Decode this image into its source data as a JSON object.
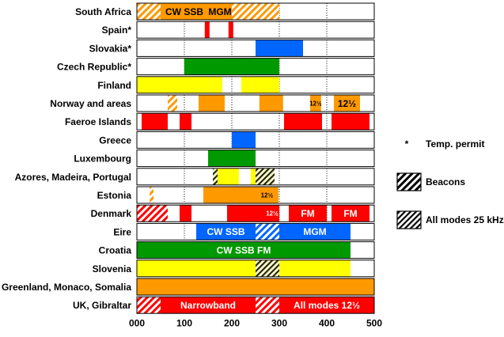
{
  "chart_data": {
    "type": "bar",
    "orientation": "horizontal",
    "subtype": "band-allocation",
    "x_ticks": [
      "000",
      "100",
      "200",
      "300",
      "400",
      "500"
    ],
    "x_tick_values": [
      0,
      100,
      200,
      300,
      400,
      500
    ],
    "xlim": [
      0,
      500
    ],
    "gridlines": [
      100,
      200,
      300,
      400
    ],
    "colors": {
      "orange": "#ff9900",
      "red": "#ff0000",
      "blue": "#0066ff",
      "green": "#009900",
      "yellow": "#ffff00",
      "white": "#ffffff"
    },
    "rows": [
      {
        "label": "South Africa",
        "segments": [
          {
            "from": 0,
            "to": 50,
            "fill": "orange",
            "pattern": "hatch"
          },
          {
            "from": 50,
            "to": 150,
            "fill": "orange",
            "text": "CW SSB"
          },
          {
            "from": 150,
            "to": 200,
            "fill": "orange",
            "text": "MGM"
          },
          {
            "from": 200,
            "to": 300,
            "fill": "orange",
            "pattern": "hatch"
          }
        ]
      },
      {
        "label": "Spain*",
        "segments": [
          {
            "from": 143,
            "to": 153,
            "fill": "red"
          },
          {
            "from": 193,
            "to": 203,
            "fill": "red"
          }
        ]
      },
      {
        "label": "Slovakia*",
        "segments": [
          {
            "from": 250,
            "to": 350,
            "fill": "blue"
          }
        ]
      },
      {
        "label": "Czech Republic*",
        "segments": [
          {
            "from": 100,
            "to": 300,
            "fill": "green"
          }
        ]
      },
      {
        "label": "Finland",
        "segments": [
          {
            "from": 0,
            "to": 180,
            "fill": "yellow"
          },
          {
            "from": 220,
            "to": 300,
            "fill": "yellow"
          }
        ]
      },
      {
        "label": "Norway and areas",
        "segments": [
          {
            "from": 65,
            "to": 85,
            "fill": "orange",
            "pattern": "hatch"
          },
          {
            "from": 130,
            "to": 185,
            "fill": "orange"
          },
          {
            "from": 258,
            "to": 308,
            "fill": "orange"
          },
          {
            "from": 365,
            "to": 388,
            "fill": "orange",
            "text": "12½"
          },
          {
            "from": 415,
            "to": 470,
            "fill": "orange",
            "text": "12½"
          }
        ]
      },
      {
        "label": "Faeroe Islands",
        "segments": [
          {
            "from": 10,
            "to": 65,
            "fill": "red"
          },
          {
            "from": 90,
            "to": 115,
            "fill": "red"
          },
          {
            "from": 310,
            "to": 390,
            "fill": "red"
          },
          {
            "from": 410,
            "to": 490,
            "fill": "red"
          }
        ]
      },
      {
        "label": "Greece",
        "segments": [
          {
            "from": 200,
            "to": 250,
            "fill": "blue"
          }
        ]
      },
      {
        "label": "Luxembourg",
        "segments": [
          {
            "from": 150,
            "to": 250,
            "fill": "green"
          }
        ]
      },
      {
        "label": "Azores, Madeira, Portugal",
        "segments": [
          {
            "from": 160,
            "to": 170,
            "fill": "yellow",
            "pattern": "black-hatch"
          },
          {
            "from": 170,
            "to": 215,
            "fill": "yellow"
          },
          {
            "from": 240,
            "to": 250,
            "fill": "yellow"
          },
          {
            "from": 250,
            "to": 290,
            "fill": "yellow",
            "pattern": "black-hatch"
          }
        ]
      },
      {
        "label": "Estonia",
        "segments": [
          {
            "from": 27,
            "to": 35,
            "fill": "orange",
            "pattern": "hatch"
          },
          {
            "from": 140,
            "to": 250,
            "fill": "orange"
          },
          {
            "from": 250,
            "to": 298,
            "fill": "orange",
            "text": "12½"
          }
        ]
      },
      {
        "label": "Denmark",
        "segments": [
          {
            "from": 0,
            "to": 65,
            "fill": "red",
            "pattern": "hatch"
          },
          {
            "from": 90,
            "to": 115,
            "fill": "red"
          },
          {
            "from": 190,
            "to": 270,
            "fill": "red"
          },
          {
            "from": 270,
            "to": 300,
            "fill": "red",
            "text": "12½"
          },
          {
            "from": 320,
            "to": 400,
            "fill": "red",
            "text": "FM"
          },
          {
            "from": 410,
            "to": 490,
            "fill": "red",
            "text": "FM"
          }
        ]
      },
      {
        "label": "Eire",
        "segments": [
          {
            "from": 125,
            "to": 250,
            "fill": "blue",
            "text": "CW SSB"
          },
          {
            "from": 250,
            "to": 300,
            "fill": "blue",
            "pattern": "hatch"
          },
          {
            "from": 300,
            "to": 450,
            "fill": "blue",
            "text": "MGM"
          }
        ]
      },
      {
        "label": "Croatia",
        "segments": [
          {
            "from": 0,
            "to": 450,
            "fill": "green",
            "text": "CW SSB FM"
          }
        ]
      },
      {
        "label": "Slovenia",
        "segments": [
          {
            "from": 0,
            "to": 250,
            "fill": "yellow"
          },
          {
            "from": 250,
            "to": 300,
            "fill": "yellow",
            "pattern": "black-hatch"
          },
          {
            "from": 300,
            "to": 450,
            "fill": "yellow"
          }
        ]
      },
      {
        "label": "Greenland, Monaco, Somalia",
        "segments": [
          {
            "from": 0,
            "to": 500,
            "fill": "orange"
          }
        ]
      },
      {
        "label": "UK, Gibraltar",
        "segments": [
          {
            "from": 0,
            "to": 50,
            "fill": "red",
            "pattern": "hatch"
          },
          {
            "from": 50,
            "to": 250,
            "fill": "red",
            "text": "Narrowband"
          },
          {
            "from": 250,
            "to": 300,
            "fill": "red",
            "pattern": "hatch"
          },
          {
            "from": 300,
            "to": 500,
            "fill": "red",
            "text": "All modes 12½"
          }
        ]
      }
    ],
    "legend": {
      "placement": "right",
      "items": [
        {
          "symbol": "*",
          "text": "Temp. permit"
        },
        {
          "symbol": "hatch",
          "text": "Beacons"
        },
        {
          "symbol": "black-hatch",
          "text": "All modes 25 kHz"
        }
      ]
    }
  }
}
